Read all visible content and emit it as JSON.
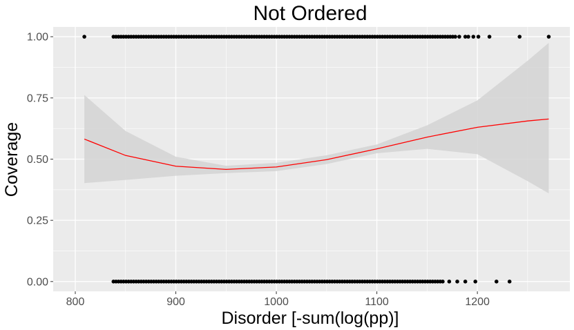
{
  "chart_data": {
    "type": "scatter",
    "title": "Not Ordered",
    "xlabel": "Disorder [-sum(log(pp)]",
    "ylabel": "Coverage",
    "xlim": [
      778,
      1292
    ],
    "ylim": [
      -0.04,
      1.04
    ],
    "x_ticks": [
      800,
      900,
      1000,
      1100,
      1200
    ],
    "x_tick_labels": [
      "800",
      "900",
      "1000",
      "1100",
      "1200"
    ],
    "y_ticks": [
      0,
      0.25,
      0.5,
      0.75,
      1.0
    ],
    "y_tick_labels": [
      "0.00",
      "0.25",
      "0.50",
      "0.75",
      "1.00"
    ],
    "grid": true,
    "legend": "none",
    "colors": {
      "panel": "#ebebeb",
      "grid_major": "#ffffff",
      "points": "#000000",
      "smooth_line": "#ff0000",
      "confidence_band": "#d4d4d4"
    },
    "points": {
      "y1": {
        "isolated_x": [
          809,
          1182,
          1188,
          1191,
          1196,
          1201,
          1212,
          1242,
          1271
        ],
        "dense_ranges": [
          [
            838,
            1178
          ]
        ]
      },
      "y0": {
        "isolated_x": [
          1172,
          1180,
          1188,
          1198,
          1219,
          1232
        ],
        "dense_ranges": [
          [
            838,
            1166
          ]
        ]
      }
    },
    "smooth": {
      "method": "logistic smooth with confidence band",
      "x": [
        809,
        850,
        900,
        950,
        1000,
        1050,
        1100,
        1150,
        1200,
        1250,
        1271
      ],
      "y": [
        0.582,
        0.515,
        0.471,
        0.458,
        0.468,
        0.498,
        0.542,
        0.59,
        0.63,
        0.656,
        0.664
      ],
      "lower": [
        0.402,
        0.415,
        0.432,
        0.443,
        0.451,
        0.48,
        0.524,
        0.542,
        0.52,
        0.41,
        0.36
      ],
      "upper": [
        0.762,
        0.615,
        0.51,
        0.473,
        0.485,
        0.516,
        0.56,
        0.638,
        0.74,
        0.902,
        0.975
      ]
    }
  }
}
